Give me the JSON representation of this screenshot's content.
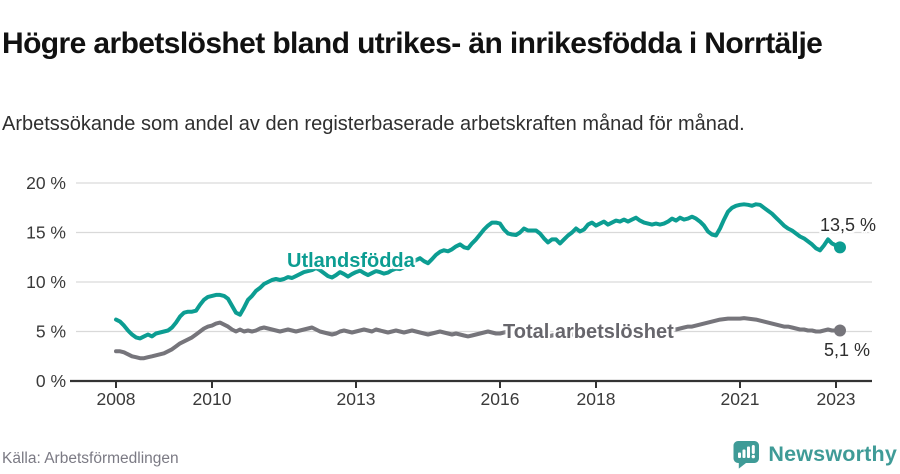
{
  "header": {
    "title": "Högre arbetslöshet bland utrikes- än inrikesfödda i Norrtälje",
    "subtitle": "Arbetssökande som andel av den registerbaserade arbetskraften månad för månad."
  },
  "chart_data": {
    "type": "line",
    "unit": "%",
    "frequency": "monthly",
    "x_start": "2008-01",
    "x_end": "2023-02",
    "ylim": [
      0,
      20
    ],
    "grid": "horizontal",
    "legend_position": "inline-labels",
    "y_ticks": [
      {
        "value": 0,
        "label": "0 %"
      },
      {
        "value": 5,
        "label": "5 %"
      },
      {
        "value": 10,
        "label": "10 %"
      },
      {
        "value": 15,
        "label": "15 %"
      },
      {
        "value": 20,
        "label": "20 %"
      }
    ],
    "x_tick_years": [
      {
        "year": 2008,
        "label": "2008"
      },
      {
        "year": 2010,
        "label": "2010"
      },
      {
        "year": 2013,
        "label": "2013"
      },
      {
        "year": 2016,
        "label": "2016"
      },
      {
        "year": 2018,
        "label": "2018"
      },
      {
        "year": 2021,
        "label": "2021"
      },
      {
        "year": 2023,
        "label": "2023"
      }
    ],
    "series": [
      {
        "name": "Utlandsfödda",
        "color": "#0c9d92",
        "end_label": "13,5 %",
        "end_value": 13.5,
        "values": [
          6.2,
          6.0,
          5.6,
          5.1,
          4.7,
          4.4,
          4.3,
          4.5,
          4.7,
          4.5,
          4.8,
          4.9,
          5.0,
          5.1,
          5.4,
          5.9,
          6.5,
          6.9,
          7.0,
          7.0,
          7.1,
          7.7,
          8.2,
          8.5,
          8.6,
          8.7,
          8.7,
          8.6,
          8.3,
          7.6,
          6.9,
          6.7,
          7.4,
          8.2,
          8.6,
          9.1,
          9.4,
          9.8,
          10.0,
          10.2,
          10.3,
          10.2,
          10.3,
          10.5,
          10.4,
          10.6,
          10.8,
          11.0,
          11.1,
          11.2,
          11.4,
          11.2,
          10.9,
          10.6,
          10.45,
          10.7,
          11.0,
          10.8,
          10.55,
          10.8,
          11.0,
          11.15,
          10.9,
          10.7,
          10.9,
          11.1,
          11.0,
          10.85,
          10.95,
          11.2,
          11.35,
          11.3,
          11.5,
          11.75,
          12.0,
          12.2,
          12.4,
          12.1,
          11.9,
          12.3,
          12.75,
          13.05,
          13.2,
          13.1,
          13.3,
          13.6,
          13.8,
          13.5,
          13.4,
          13.9,
          14.3,
          14.8,
          15.3,
          15.7,
          16.0,
          16.0,
          15.9,
          15.3,
          14.9,
          14.8,
          14.75,
          15.0,
          15.4,
          15.2,
          15.2,
          15.2,
          14.9,
          14.4,
          14.0,
          14.3,
          14.3,
          13.9,
          14.3,
          14.7,
          15.0,
          15.4,
          15.1,
          15.3,
          15.8,
          16.0,
          15.7,
          15.9,
          16.1,
          15.8,
          16.0,
          16.2,
          16.1,
          16.3,
          16.1,
          16.3,
          16.5,
          16.2,
          16.0,
          15.9,
          15.8,
          15.9,
          15.8,
          15.9,
          16.1,
          16.4,
          16.2,
          16.5,
          16.3,
          16.4,
          16.6,
          16.4,
          16.1,
          15.7,
          15.1,
          14.8,
          14.7,
          15.4,
          16.3,
          17.1,
          17.5,
          17.7,
          17.8,
          17.85,
          17.8,
          17.7,
          17.85,
          17.8,
          17.5,
          17.2,
          16.9,
          16.5,
          16.1,
          15.7,
          15.4,
          15.2,
          14.9,
          14.6,
          14.4,
          14.1,
          13.8,
          13.4,
          13.2,
          13.7,
          14.3,
          13.9,
          13.7,
          13.5
        ]
      },
      {
        "name": "Total arbetslöshet",
        "color": "#76757b",
        "end_label": "5,1 %",
        "end_value": 5.1,
        "values": [
          3.0,
          3.0,
          2.9,
          2.7,
          2.5,
          2.4,
          2.3,
          2.3,
          2.4,
          2.5,
          2.6,
          2.7,
          2.8,
          3.0,
          3.2,
          3.5,
          3.8,
          4.0,
          4.2,
          4.4,
          4.7,
          5.0,
          5.3,
          5.5,
          5.6,
          5.8,
          5.9,
          5.7,
          5.5,
          5.2,
          5.0,
          5.2,
          5.0,
          5.1,
          5.0,
          5.1,
          5.3,
          5.4,
          5.3,
          5.2,
          5.1,
          5.0,
          5.1,
          5.2,
          5.1,
          5.0,
          5.1,
          5.2,
          5.3,
          5.4,
          5.2,
          5.0,
          4.9,
          4.8,
          4.7,
          4.8,
          5.0,
          5.1,
          5.0,
          4.9,
          5.0,
          5.1,
          5.2,
          5.1,
          5.0,
          5.2,
          5.1,
          5.0,
          4.9,
          5.0,
          5.1,
          5.0,
          4.9,
          5.0,
          5.1,
          5.0,
          4.9,
          4.8,
          4.7,
          4.8,
          4.9,
          5.0,
          4.9,
          4.8,
          4.7,
          4.8,
          4.7,
          4.6,
          4.5,
          4.6,
          4.7,
          4.8,
          4.9,
          5.0,
          4.9,
          4.8,
          4.8,
          4.9,
          5.0,
          4.9,
          4.7,
          4.6,
          4.5,
          4.6,
          4.7,
          4.8,
          4.7,
          4.6,
          4.5,
          4.6,
          4.7,
          4.8,
          4.7,
          4.6,
          4.7,
          4.8,
          4.9,
          4.8,
          4.9,
          5.0,
          4.9,
          5.0,
          4.9,
          4.8,
          4.7,
          4.8,
          4.9,
          4.8,
          4.9,
          5.0,
          4.9,
          5.0,
          5.0,
          5.1,
          5.2,
          5.1,
          5.0,
          5.1,
          5.2,
          5.3,
          5.2,
          5.3,
          5.4,
          5.5,
          5.5,
          5.6,
          5.7,
          5.8,
          5.9,
          6.0,
          6.1,
          6.2,
          6.25,
          6.3,
          6.3,
          6.3,
          6.3,
          6.35,
          6.3,
          6.25,
          6.2,
          6.1,
          6.0,
          5.9,
          5.8,
          5.7,
          5.6,
          5.5,
          5.5,
          5.4,
          5.3,
          5.2,
          5.2,
          5.1,
          5.1,
          5.0,
          5.0,
          5.1,
          5.2,
          5.1,
          5.1,
          5.1
        ]
      }
    ]
  },
  "footer": {
    "source": "Källa: Arbetsförmedlingen",
    "brand": "Newsworthy"
  },
  "colors": {
    "accent_teal": "#0c9d92",
    "line_gray": "#76757b",
    "label_gray": "#67666c",
    "axis": "#333333",
    "tick_text": "#3a3a3a",
    "grid": "#d9d9d9",
    "brand_teal": "#3f9b97"
  }
}
